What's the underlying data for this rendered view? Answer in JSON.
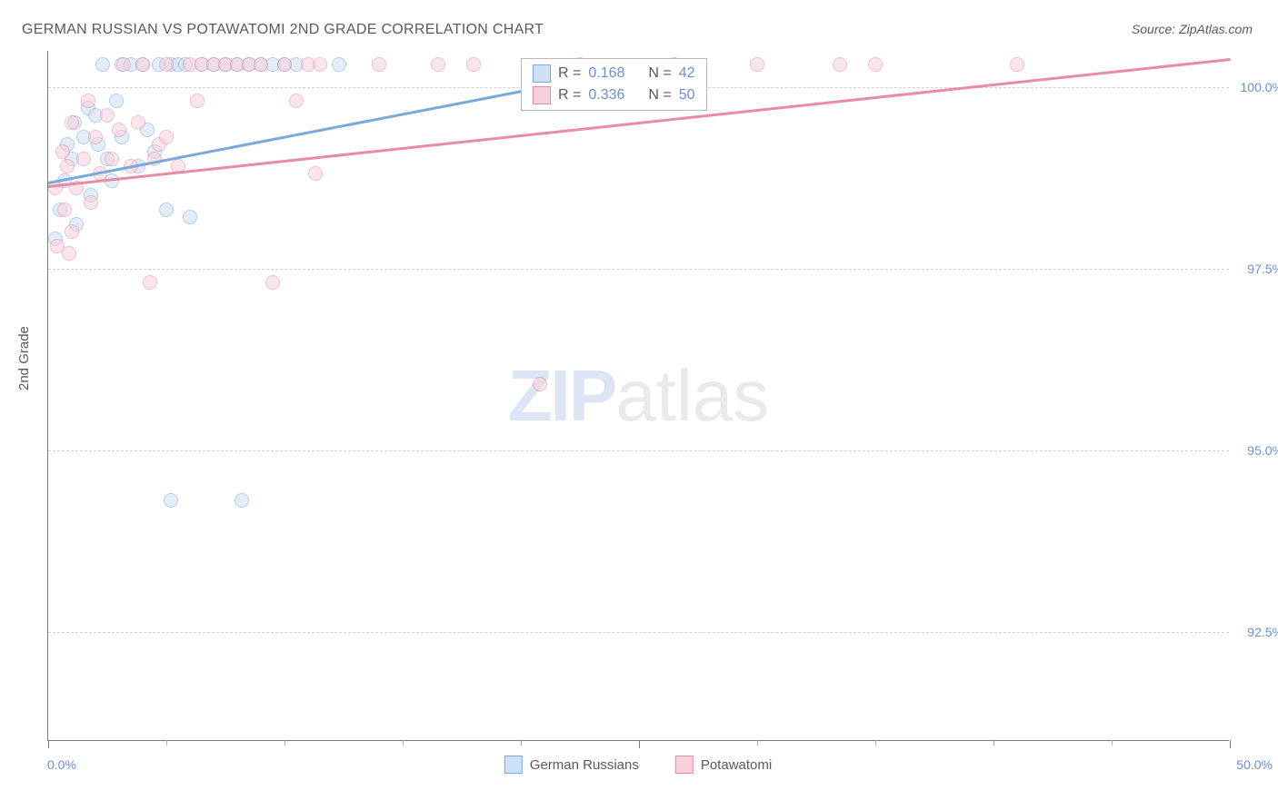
{
  "title": "GERMAN RUSSIAN VS POTAWATOMI 2ND GRADE CORRELATION CHART",
  "source_label": "Source: ZipAtlas.com",
  "y_axis_title": "2nd Grade",
  "watermark": {
    "part1": "ZIP",
    "part2": "atlas"
  },
  "chart": {
    "type": "scatter",
    "xlim": [
      0,
      50
    ],
    "ylim": [
      91.0,
      100.5
    ],
    "x_ticks_major": [
      0,
      25,
      50
    ],
    "x_ticks_minor": [
      5,
      10,
      15,
      20,
      30,
      35,
      40,
      45
    ],
    "x_tick_labels": {
      "left": "0.0%",
      "right": "50.0%"
    },
    "y_gridlines": [
      92.5,
      95.0,
      97.5,
      100.0
    ],
    "y_tick_labels": [
      "92.5%",
      "95.0%",
      "97.5%",
      "100.0%"
    ],
    "background_color": "#ffffff",
    "grid_color": "#d0d0d0",
    "axis_color": "#7a7a7a",
    "label_color": "#6b8fd4",
    "marker_radius": 8,
    "marker_stroke_width": 1.5,
    "trend_line_width": 2.5
  },
  "series": [
    {
      "id": "german_russians",
      "name": "German Russians",
      "fill": "#cde0f5",
      "stroke": "#7aa8d8",
      "fill_opacity": 0.55,
      "R": "0.168",
      "N": "42",
      "trend": {
        "x1": 0,
        "y1": 98.7,
        "x2": 27,
        "y2": 100.4
      },
      "points": [
        [
          0.3,
          97.9
        ],
        [
          0.5,
          98.3
        ],
        [
          0.7,
          98.7
        ],
        [
          0.8,
          99.2
        ],
        [
          1.0,
          99.0
        ],
        [
          1.1,
          99.5
        ],
        [
          1.2,
          98.1
        ],
        [
          1.5,
          99.3
        ],
        [
          1.7,
          99.7
        ],
        [
          1.8,
          98.5
        ],
        [
          2.0,
          99.6
        ],
        [
          2.1,
          99.2
        ],
        [
          2.3,
          100.3
        ],
        [
          2.5,
          99.0
        ],
        [
          2.7,
          98.7
        ],
        [
          2.9,
          99.8
        ],
        [
          3.1,
          100.3
        ],
        [
          3.1,
          99.3
        ],
        [
          3.5,
          100.3
        ],
        [
          3.8,
          98.9
        ],
        [
          4.0,
          100.3
        ],
        [
          4.2,
          99.4
        ],
        [
          4.5,
          99.1
        ],
        [
          4.7,
          100.3
        ],
        [
          5.0,
          98.3
        ],
        [
          5.2,
          100.3
        ],
        [
          5.5,
          100.3
        ],
        [
          5.8,
          100.3
        ],
        [
          5.2,
          94.3
        ],
        [
          6.0,
          98.2
        ],
        [
          6.5,
          100.3
        ],
        [
          7.0,
          100.3
        ],
        [
          7.5,
          100.3
        ],
        [
          8.0,
          100.3
        ],
        [
          8.2,
          94.3
        ],
        [
          8.5,
          100.3
        ],
        [
          9.0,
          100.3
        ],
        [
          9.5,
          100.3
        ],
        [
          10.0,
          100.3
        ],
        [
          10.5,
          100.3
        ],
        [
          12.3,
          100.3
        ],
        [
          26.5,
          100.3
        ]
      ]
    },
    {
      "id": "potawatomi",
      "name": "Potawatomi",
      "fill": "#f7d0da",
      "stroke": "#e88ba5",
      "fill_opacity": 0.55,
      "R": "0.336",
      "N": "50",
      "trend": {
        "x1": 0,
        "y1": 98.65,
        "x2": 50,
        "y2": 100.4
      },
      "points": [
        [
          0.3,
          98.6
        ],
        [
          0.4,
          97.8
        ],
        [
          0.6,
          99.1
        ],
        [
          0.7,
          98.3
        ],
        [
          0.8,
          98.9
        ],
        [
          0.9,
          97.7
        ],
        [
          1.0,
          99.5
        ],
        [
          1.0,
          98.0
        ],
        [
          1.2,
          98.6
        ],
        [
          1.5,
          99.0
        ],
        [
          1.7,
          99.8
        ],
        [
          1.8,
          98.4
        ],
        [
          2.0,
          99.3
        ],
        [
          2.2,
          98.8
        ],
        [
          2.5,
          99.6
        ],
        [
          2.7,
          99.0
        ],
        [
          3.0,
          99.4
        ],
        [
          3.2,
          100.3
        ],
        [
          3.5,
          98.9
        ],
        [
          3.8,
          99.5
        ],
        [
          4.0,
          100.3
        ],
        [
          4.3,
          97.3
        ],
        [
          4.5,
          99.0
        ],
        [
          4.7,
          99.2
        ],
        [
          5.0,
          100.3
        ],
        [
          5.0,
          99.3
        ],
        [
          5.5,
          98.9
        ],
        [
          6.0,
          100.3
        ],
        [
          6.3,
          99.8
        ],
        [
          6.5,
          100.3
        ],
        [
          7.0,
          100.3
        ],
        [
          7.5,
          100.3
        ],
        [
          8.0,
          100.3
        ],
        [
          8.5,
          100.3
        ],
        [
          9.0,
          100.3
        ],
        [
          9.5,
          97.3
        ],
        [
          10.0,
          100.3
        ],
        [
          10.5,
          99.8
        ],
        [
          11.0,
          100.3
        ],
        [
          11.3,
          98.8
        ],
        [
          11.5,
          100.3
        ],
        [
          14.0,
          100.3
        ],
        [
          16.5,
          100.3
        ],
        [
          18.0,
          100.3
        ],
        [
          20.8,
          95.9
        ],
        [
          22.5,
          100.3
        ],
        [
          30.0,
          100.3
        ],
        [
          33.5,
          100.3
        ],
        [
          35.0,
          100.3
        ],
        [
          41.0,
          100.3
        ]
      ]
    }
  ],
  "stats_labels": {
    "R": "R =",
    "N": "N ="
  },
  "legend": [
    {
      "label": "German Russians",
      "fill": "#cde0f5",
      "stroke": "#7aa8d8"
    },
    {
      "label": "Potawatomi",
      "fill": "#f7d0da",
      "stroke": "#e88ba5"
    }
  ]
}
